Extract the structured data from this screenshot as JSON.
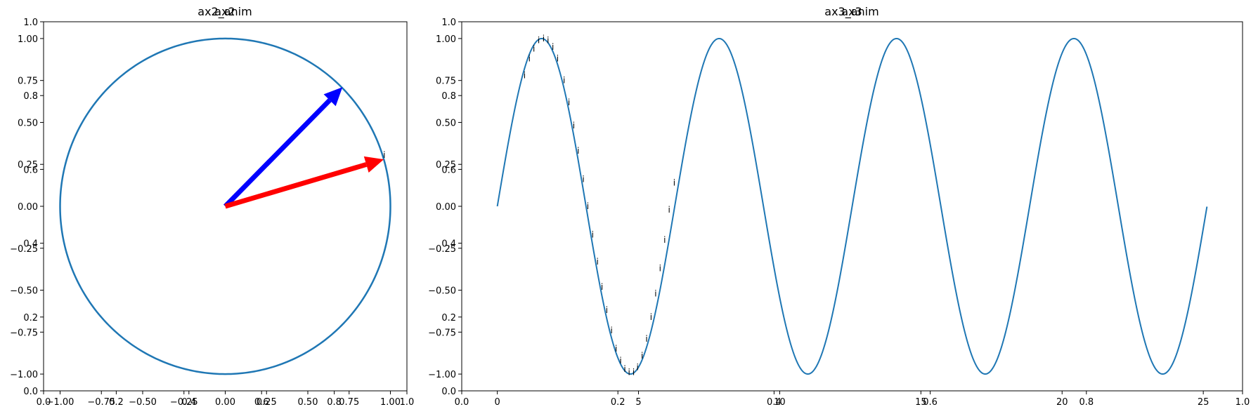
{
  "chart_data": [
    {
      "type": "line",
      "panel": "left",
      "title_overlap": [
        "ax2",
        "ax2_anim"
      ],
      "base_axis": {
        "xlim": [
          0.0,
          1.0
        ],
        "ylim": [
          0.0,
          1.0
        ],
        "xticks": [
          "0.0",
          "0.2",
          "0.4",
          "0.6",
          "0.8",
          "1.0"
        ],
        "yticks": [
          "0.0",
          "0.2",
          "0.4",
          "0.6",
          "0.8",
          "1.0"
        ]
      },
      "plot_axis": {
        "xlim": [
          -1.1,
          1.1
        ],
        "ylim": [
          -1.1,
          1.1
        ],
        "xticks": [
          "−1.00",
          "−0.75",
          "−0.50",
          "−0.25",
          "0.00",
          "0.25",
          "0.50",
          "0.75",
          "1.00"
        ],
        "yticks": [
          "−1.00",
          "−0.75",
          "−0.50",
          "−0.25",
          "0.00",
          "0.25",
          "0.50",
          "0.75",
          "1.00"
        ]
      },
      "series": [
        {
          "kind": "unit-circle",
          "color": "#1f77b4",
          "radius": 1.0
        }
      ],
      "arrows": [
        {
          "color": "#0000ff",
          "from": [
            0,
            0
          ],
          "to": [
            0.71,
            0.71
          ]
        },
        {
          "color": "#ff0000",
          "from": [
            0,
            0
          ],
          "to": [
            0.96,
            0.28
          ]
        }
      ],
      "annotations": [
        {
          "text": "i",
          "x": 0.96,
          "y": 0.28
        }
      ],
      "grid": false
    },
    {
      "type": "line",
      "panel": "right",
      "title_overlap": [
        "ax3",
        "ax3_anim"
      ],
      "base_axis": {
        "xlim": [
          0.0,
          1.0
        ],
        "ylim": [
          0.0,
          1.0
        ],
        "xticks": [
          "0.0",
          "0.2",
          "0.4",
          "0.6",
          "0.8",
          "1.0"
        ],
        "yticks": [
          "0.0",
          "0.2",
          "0.4",
          "0.6",
          "0.8",
          "1.0"
        ]
      },
      "plot_axis": {
        "xlim": [
          -1.26,
          26.39
        ],
        "ylim": [
          -1.1,
          1.1
        ],
        "xticks": [
          0,
          5,
          10,
          15,
          20,
          25
        ],
        "yticks": [
          "−1.00",
          "−0.75",
          "−0.50",
          "−0.25",
          "0.00",
          "0.25",
          "0.50",
          "0.75",
          "1.00"
        ]
      },
      "series": [
        {
          "kind": "sine",
          "color": "#1f77b4",
          "x_start": 0,
          "x_end": 25.13,
          "period": 6.283
        }
      ],
      "annotations": {
        "text": "i",
        "points": [
          [
            0.9,
            0.78
          ],
          [
            1.07,
            0.88
          ],
          [
            1.23,
            0.94
          ],
          [
            1.4,
            0.99
          ],
          [
            1.57,
            1.0
          ],
          [
            1.73,
            0.99
          ],
          [
            1.9,
            0.95
          ],
          [
            2.07,
            0.88
          ],
          [
            2.3,
            0.75
          ],
          [
            2.47,
            0.62
          ],
          [
            2.64,
            0.48
          ],
          [
            2.8,
            0.33
          ],
          [
            2.98,
            0.16
          ],
          [
            3.14,
            0.0
          ],
          [
            3.31,
            -0.17
          ],
          [
            3.48,
            -0.33
          ],
          [
            3.64,
            -0.48
          ],
          [
            3.81,
            -0.62
          ],
          [
            3.98,
            -0.74
          ],
          [
            4.14,
            -0.85
          ],
          [
            4.3,
            -0.92
          ],
          [
            4.45,
            -0.97
          ],
          [
            4.6,
            -0.99
          ],
          [
            4.76,
            -0.99
          ],
          [
            4.9,
            -0.96
          ],
          [
            5.06,
            -0.89
          ],
          [
            5.22,
            -0.79
          ],
          [
            5.38,
            -0.66
          ],
          [
            5.54,
            -0.52
          ],
          [
            5.7,
            -0.37
          ],
          [
            5.86,
            -0.2
          ],
          [
            6.02,
            -0.02
          ],
          [
            6.2,
            0.14
          ]
        ]
      },
      "grid": false
    }
  ]
}
